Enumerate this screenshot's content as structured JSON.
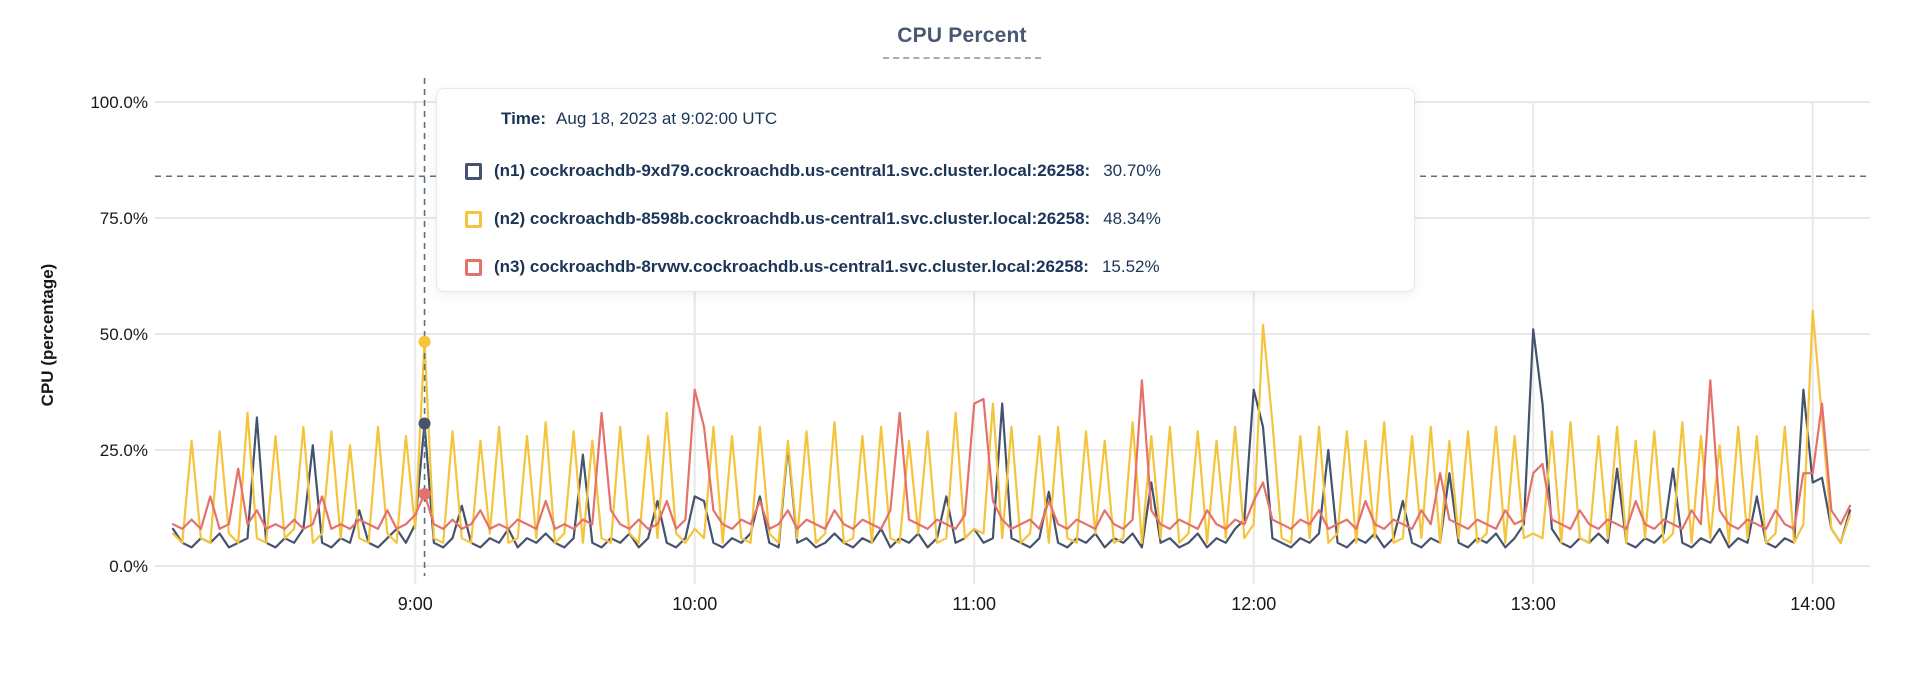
{
  "title": "CPU Percent",
  "axes": {
    "y_title": "CPU (percentage)"
  },
  "tooltip": {
    "time_label": "Time:",
    "time_value": "Aug 18, 2023 at 9:02:00 UTC"
  },
  "colors": {
    "title": "#475872",
    "tooltip_text": "#1b3557",
    "gridline": "#e8e8e8",
    "dashed_guides": "#5a7184",
    "n1": "#46536e",
    "n2": "#f5c43d",
    "n3": "#e5716c"
  },
  "chart_data": {
    "type": "line",
    "title": "CPU Percent",
    "xlabel": "",
    "ylabel": "CPU (percentage)",
    "ylim": [
      0,
      100
    ],
    "grid": true,
    "threshold_dashed_line_pct": 84,
    "x_axis": {
      "start_time": "8:08",
      "step_minutes": 2,
      "tick_labels": [
        "9:00",
        "10:00",
        "11:00",
        "12:00",
        "13:00",
        "14:00"
      ],
      "tick_minutes_from_start": [
        52,
        112,
        172,
        232,
        292,
        352
      ]
    },
    "y_axis": {
      "tick_labels": [
        "100.0%",
        "75.0%",
        "50.0%",
        "25.0%",
        "0.0%"
      ],
      "tick_values": [
        100,
        75,
        50,
        25,
        0
      ]
    },
    "hover": {
      "index": 27,
      "time_label": "Time:",
      "time_text": "Aug 18, 2023 at 9:02:00 UTC"
    },
    "series": [
      {
        "id": "n1",
        "name": "(n1) cockroachdb-9xd79.cockroachdb.us-central1.svc.cluster.local:26258:",
        "color": "#46536e",
        "hover_value": 30.7,
        "hover_value_text": "30.70%",
        "values": [
          8,
          5,
          4,
          6,
          5,
          7,
          4,
          5,
          6,
          32,
          5,
          4,
          6,
          5,
          8,
          26,
          5,
          4,
          6,
          5,
          12,
          5,
          4,
          6,
          8,
          5,
          9,
          30.7,
          5,
          4,
          6,
          13,
          5,
          4,
          6,
          5,
          8,
          4,
          6,
          5,
          7,
          5,
          4,
          6,
          24,
          5,
          4,
          6,
          5,
          7,
          4,
          6,
          14,
          5,
          4,
          6,
          15,
          14,
          5,
          4,
          6,
          5,
          7,
          15,
          5,
          4,
          26,
          5,
          6,
          4,
          5,
          7,
          5,
          4,
          6,
          5,
          8,
          4,
          6,
          5,
          7,
          4,
          6,
          15,
          5,
          6,
          8,
          5,
          6,
          35,
          6,
          5,
          4,
          6,
          16,
          5,
          4,
          6,
          5,
          7,
          4,
          6,
          5,
          7,
          4,
          18,
          5,
          6,
          4,
          5,
          7,
          4,
          6,
          5,
          8,
          10,
          38,
          30,
          6,
          5,
          4,
          6,
          5,
          7,
          25,
          5,
          4,
          6,
          5,
          7,
          4,
          6,
          14,
          5,
          4,
          6,
          5,
          20,
          5,
          4,
          6,
          5,
          7,
          4,
          6,
          9,
          51,
          35,
          8,
          5,
          4,
          6,
          5,
          7,
          5,
          21,
          5,
          4,
          6,
          5,
          7,
          21,
          5,
          4,
          6,
          5,
          8,
          4,
          6,
          5,
          15,
          5,
          4,
          6,
          5,
          38,
          18,
          19,
          8,
          5,
          12
        ]
      },
      {
        "id": "n2",
        "name": "(n2) cockroachdb-8598b.cockroachdb.us-central1.svc.cluster.local:26258:",
        "color": "#f5c43d",
        "hover_value": 48.34,
        "hover_value_text": "48.34%",
        "values": [
          7,
          5,
          27,
          6,
          5,
          29,
          7,
          5,
          33,
          6,
          5,
          28,
          6,
          8,
          30,
          5,
          7,
          29,
          6,
          26,
          6,
          5,
          30,
          7,
          5,
          28,
          8,
          48.34,
          6,
          5,
          29,
          6,
          5,
          27,
          7,
          30,
          5,
          6,
          28,
          6,
          31,
          5,
          7,
          29,
          5,
          27,
          6,
          5,
          30,
          7,
          5,
          28,
          6,
          33,
          7,
          5,
          8,
          6,
          30,
          5,
          28,
          6,
          5,
          30,
          7,
          5,
          27,
          6,
          29,
          5,
          7,
          31,
          5,
          6,
          28,
          5,
          30,
          6,
          5,
          27,
          7,
          29,
          5,
          6,
          33,
          6,
          8,
          7,
          35,
          6,
          30,
          5,
          7,
          28,
          5,
          30,
          6,
          5,
          29,
          7,
          27,
          5,
          6,
          31,
          5,
          28,
          6,
          30,
          5,
          7,
          29,
          5,
          27,
          6,
          30,
          6,
          9,
          52,
          31,
          6,
          5,
          28,
          6,
          30,
          5,
          7,
          29,
          5,
          27,
          6,
          31,
          5,
          6,
          28,
          6,
          30,
          5,
          27,
          6,
          29,
          5,
          7,
          30,
          5,
          28,
          6,
          7,
          6,
          29,
          5,
          31,
          6,
          5,
          28,
          6,
          30,
          5,
          27,
          6,
          29,
          5,
          7,
          31,
          5,
          28,
          6,
          26,
          5,
          30,
          6,
          28,
          5,
          7,
          30,
          5,
          9,
          55,
          32,
          8,
          5,
          11
        ]
      },
      {
        "id": "n3",
        "name": "(n3) cockroachdb-8rvwv.cockroachdb.us-central1.svc.cluster.local:26258:",
        "color": "#e5716c",
        "hover_value": 15.52,
        "hover_value_text": "15.52%",
        "values": [
          9,
          8,
          10,
          8,
          15,
          8,
          9,
          21,
          9,
          12,
          8,
          9,
          8,
          10,
          8,
          9,
          15,
          8,
          9,
          8,
          10,
          9,
          8,
          12,
          8,
          9,
          11,
          15.52,
          9,
          8,
          10,
          8,
          9,
          12,
          8,
          9,
          8,
          10,
          9,
          8,
          14,
          8,
          9,
          8,
          10,
          9,
          33,
          12,
          9,
          8,
          10,
          8,
          9,
          14,
          8,
          10,
          38,
          30,
          12,
          9,
          8,
          10,
          9,
          14,
          8,
          9,
          12,
          8,
          10,
          9,
          8,
          12,
          9,
          8,
          10,
          9,
          8,
          12,
          33,
          10,
          9,
          8,
          10,
          9,
          8,
          11,
          35,
          36,
          14,
          10,
          8,
          9,
          10,
          8,
          14,
          9,
          8,
          10,
          9,
          8,
          12,
          9,
          8,
          10,
          40,
          12,
          9,
          8,
          10,
          9,
          8,
          12,
          9,
          8,
          10,
          9,
          14,
          18,
          10,
          9,
          8,
          10,
          9,
          12,
          8,
          9,
          10,
          8,
          14,
          9,
          8,
          10,
          9,
          8,
          12,
          9,
          20,
          10,
          9,
          8,
          10,
          9,
          8,
          12,
          9,
          10,
          20,
          22,
          10,
          9,
          8,
          12,
          9,
          8,
          10,
          9,
          8,
          14,
          9,
          8,
          10,
          9,
          8,
          12,
          9,
          40,
          12,
          9,
          8,
          10,
          9,
          8,
          12,
          9,
          8,
          20,
          20,
          35,
          12,
          9,
          13
        ]
      }
    ]
  }
}
